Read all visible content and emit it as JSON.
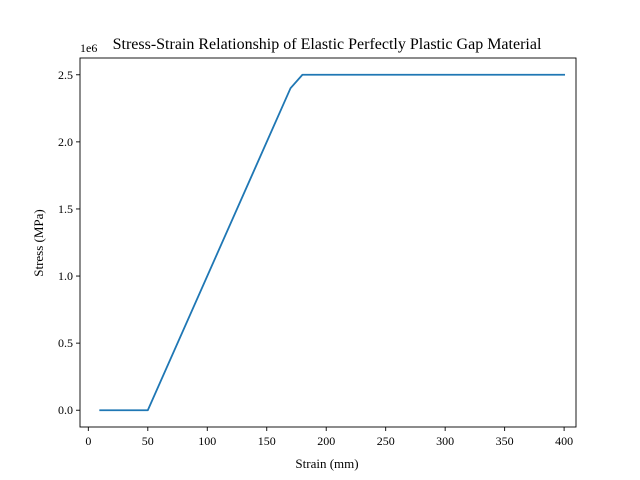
{
  "chart_data": {
    "type": "line",
    "title": "Stress-Strain Relationship of Elastic Perfectly Plastic Gap Material",
    "xlabel": "Strain (mm)",
    "ylabel": "Stress (MPa)",
    "y_offset_label": "1e6",
    "xlim": [
      -7,
      410
    ],
    "ylim": [
      -125000,
      2625000
    ],
    "x_ticks": [
      0,
      50,
      100,
      150,
      200,
      250,
      300,
      350,
      400
    ],
    "x_tick_labels": [
      "0",
      "50",
      "100",
      "150",
      "200",
      "250",
      "300",
      "350",
      "400"
    ],
    "y_ticks": [
      0,
      500000,
      1000000,
      1500000,
      2000000,
      2500000
    ],
    "y_tick_labels": [
      "0.0",
      "0.5",
      "1.0",
      "1.5",
      "2.0",
      "2.5"
    ],
    "grid": false,
    "series": [
      {
        "color": "#1f77b4",
        "x": [
          10,
          50,
          170,
          180,
          400
        ],
        "y": [
          0,
          0,
          2400000,
          2500000,
          2500000
        ]
      }
    ]
  }
}
